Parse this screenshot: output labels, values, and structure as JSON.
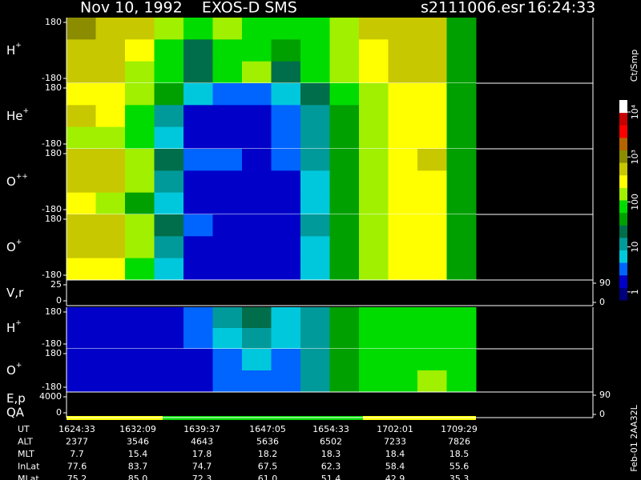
{
  "header": {
    "title": "Nov 10, 1992    EXOS-D SMS",
    "file": "s2111006.esr",
    "time": "16:24:33",
    "version": "Feb-01 2AA32L"
  },
  "chart_data": {
    "type": "heatmap",
    "colorbar": {
      "label": "Ct/Smp",
      "log": true,
      "clim": [
        0.66,
        18500
      ],
      "ticks": [
        1,
        10,
        100,
        {
          "value": 1000,
          "label": "10³"
        },
        {
          "value": 10000,
          "label": "10⁴"
        }
      ],
      "colors": [
        "#00007a",
        "#0000c8",
        "#0064ff",
        "#00c8dc",
        "#009a9a",
        "#006e4a",
        "#00a000",
        "#00dc00",
        "#a0f000",
        "#ffff00",
        "#c8c800",
        "#8c8c00",
        "#b46400",
        "#ff0000",
        "#c80000",
        "#ffffff"
      ]
    },
    "panels": [
      {
        "ion": "H",
        "charge": "+",
        "ylim": [
          -180,
          180
        ],
        "yticks": [
          180,
          -180
        ],
        "values": [
          [
            800,
            700,
            500,
            200,
            80,
            150,
            100,
            60,
            80,
            200,
            400,
            600,
            500,
            40
          ],
          [
            600,
            500,
            300,
            80,
            20,
            100,
            80,
            40,
            60,
            150,
            300,
            500,
            400,
            40
          ],
          [
            700,
            500,
            200,
            60,
            30,
            80,
            150,
            30,
            60,
            150,
            300,
            500,
            400,
            40
          ]
        ]
      },
      {
        "ion": "He",
        "charge": "+",
        "ylim": [
          -180,
          180
        ],
        "yticks": [
          180,
          -180
        ],
        "values": [
          [
            300,
            300,
            200,
            50,
            5,
            3,
            3,
            5,
            20,
            60,
            200,
            300,
            300,
            40
          ],
          [
            400,
            300,
            100,
            10,
            2,
            2,
            2,
            3,
            15,
            50,
            150,
            300,
            300,
            40
          ],
          [
            200,
            200,
            60,
            5,
            2,
            2,
            2,
            3,
            10,
            40,
            150,
            250,
            300,
            40
          ]
        ]
      },
      {
        "ion": "O",
        "charge": "++",
        "ylim": [
          -180,
          180
        ],
        "yticks": [
          180,
          -180
        ],
        "values": [
          [
            400,
            400,
            200,
            30,
            3,
            3,
            2,
            3,
            10,
            50,
            150,
            300,
            400,
            40
          ],
          [
            500,
            400,
            150,
            10,
            2,
            2,
            2,
            2,
            8,
            40,
            150,
            300,
            300,
            40
          ],
          [
            300,
            200,
            50,
            5,
            2,
            2,
            2,
            2,
            8,
            40,
            150,
            250,
            300,
            40
          ]
        ]
      },
      {
        "ion": "O",
        "charge": "+",
        "ylim": [
          -180,
          180
        ],
        "yticks": [
          180,
          -180
        ],
        "values": [
          [
            400,
            400,
            150,
            20,
            3,
            2,
            2,
            2,
            10,
            40,
            150,
            300,
            300,
            40
          ],
          [
            500,
            450,
            200,
            15,
            2,
            2,
            2,
            2,
            8,
            40,
            150,
            300,
            300,
            40
          ],
          [
            300,
            250,
            80,
            5,
            2,
            2,
            2,
            2,
            8,
            40,
            120,
            250,
            300,
            40
          ]
        ]
      },
      {
        "ion": "V,r",
        "charge": "",
        "ylim": [
          0,
          25
        ],
        "yticks": [
          25,
          0
        ],
        "y2lim": [
          0,
          90
        ],
        "y2ticks": [
          90,
          0
        ]
      },
      {
        "ion": "H",
        "charge": "+",
        "ylim": [
          -180,
          180
        ],
        "yticks": [
          180,
          -180
        ],
        "values": [
          [
            2,
            2,
            2,
            2,
            3,
            10,
            20,
            5,
            15,
            40,
            60,
            60,
            60,
            60
          ],
          [
            2,
            2,
            2,
            2,
            3,
            8,
            15,
            5,
            12,
            40,
            60,
            60,
            60,
            60
          ]
        ]
      },
      {
        "ion": "O",
        "charge": "+",
        "ylim": [
          -180,
          180
        ],
        "yticks": [
          180,
          -180
        ],
        "values": [
          [
            2,
            2,
            2,
            2,
            2,
            3,
            5,
            3,
            10,
            50,
            80,
            100,
            100,
            100
          ],
          [
            2,
            2,
            2,
            2,
            2,
            3,
            4,
            3,
            10,
            50,
            80,
            100,
            120,
            100
          ]
        ]
      },
      {
        "ion": "E,p",
        "charge": "",
        "sublabel": "QA",
        "ylim": [
          0,
          4000
        ],
        "yticks": [
          4000,
          0
        ],
        "y2lim": [
          0,
          90
        ],
        "y2ticks": [
          90,
          0
        ]
      }
    ]
  },
  "table": {
    "rows": [
      [
        "UT",
        "1624:33",
        "1632:09",
        "1639:37",
        "1647:05",
        "1654:33",
        "1702:01",
        "1709:29"
      ],
      [
        "ALT",
        "2377",
        "3546",
        "4643",
        "5636",
        "6502",
        "7233",
        "7826"
      ],
      [
        "MLT",
        "7.7",
        "15.4",
        "17.8",
        "18.2",
        "18.3",
        "18.4",
        "18.5"
      ],
      [
        "InLat",
        "77.6",
        "83.7",
        "74.7",
        "67.5",
        "62.3",
        "58.4",
        "55.6"
      ],
      [
        "MLat",
        "75.2",
        "85.0",
        "72.3",
        "61.0",
        "51.4",
        "42.9",
        "35.3"
      ]
    ]
  }
}
